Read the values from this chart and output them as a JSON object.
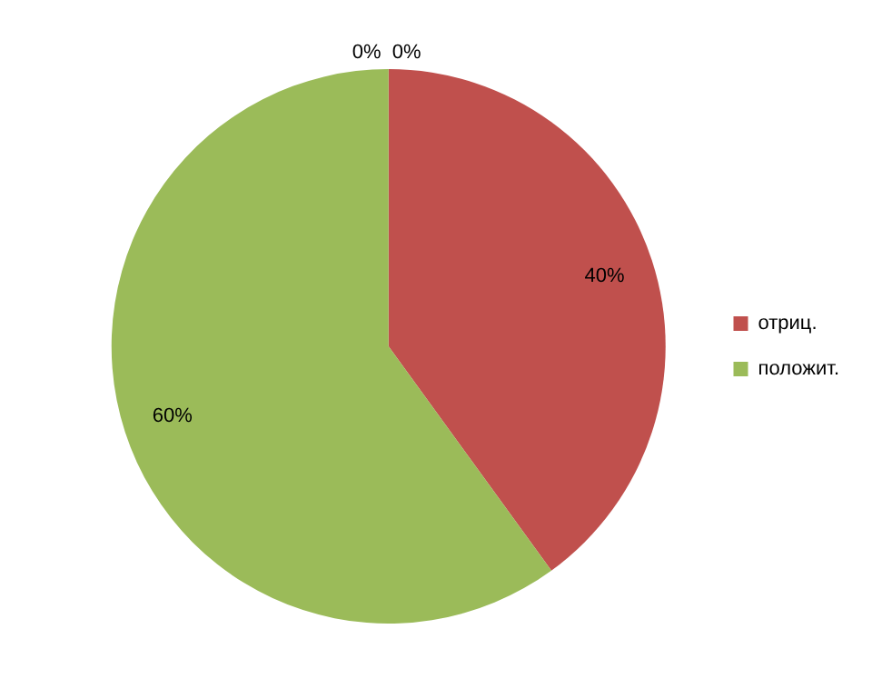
{
  "chart_data": {
    "type": "pie",
    "categories": [
      null,
      "отриц.",
      "положит.",
      null
    ],
    "values": [
      0,
      40,
      60,
      0
    ],
    "colors": [
      "#4f81bd",
      "#c0504d",
      "#9bbb59",
      "#8064a2"
    ],
    "value_labels": [
      "0%",
      "40%",
      "60%",
      "0%"
    ],
    "legend": "right"
  }
}
